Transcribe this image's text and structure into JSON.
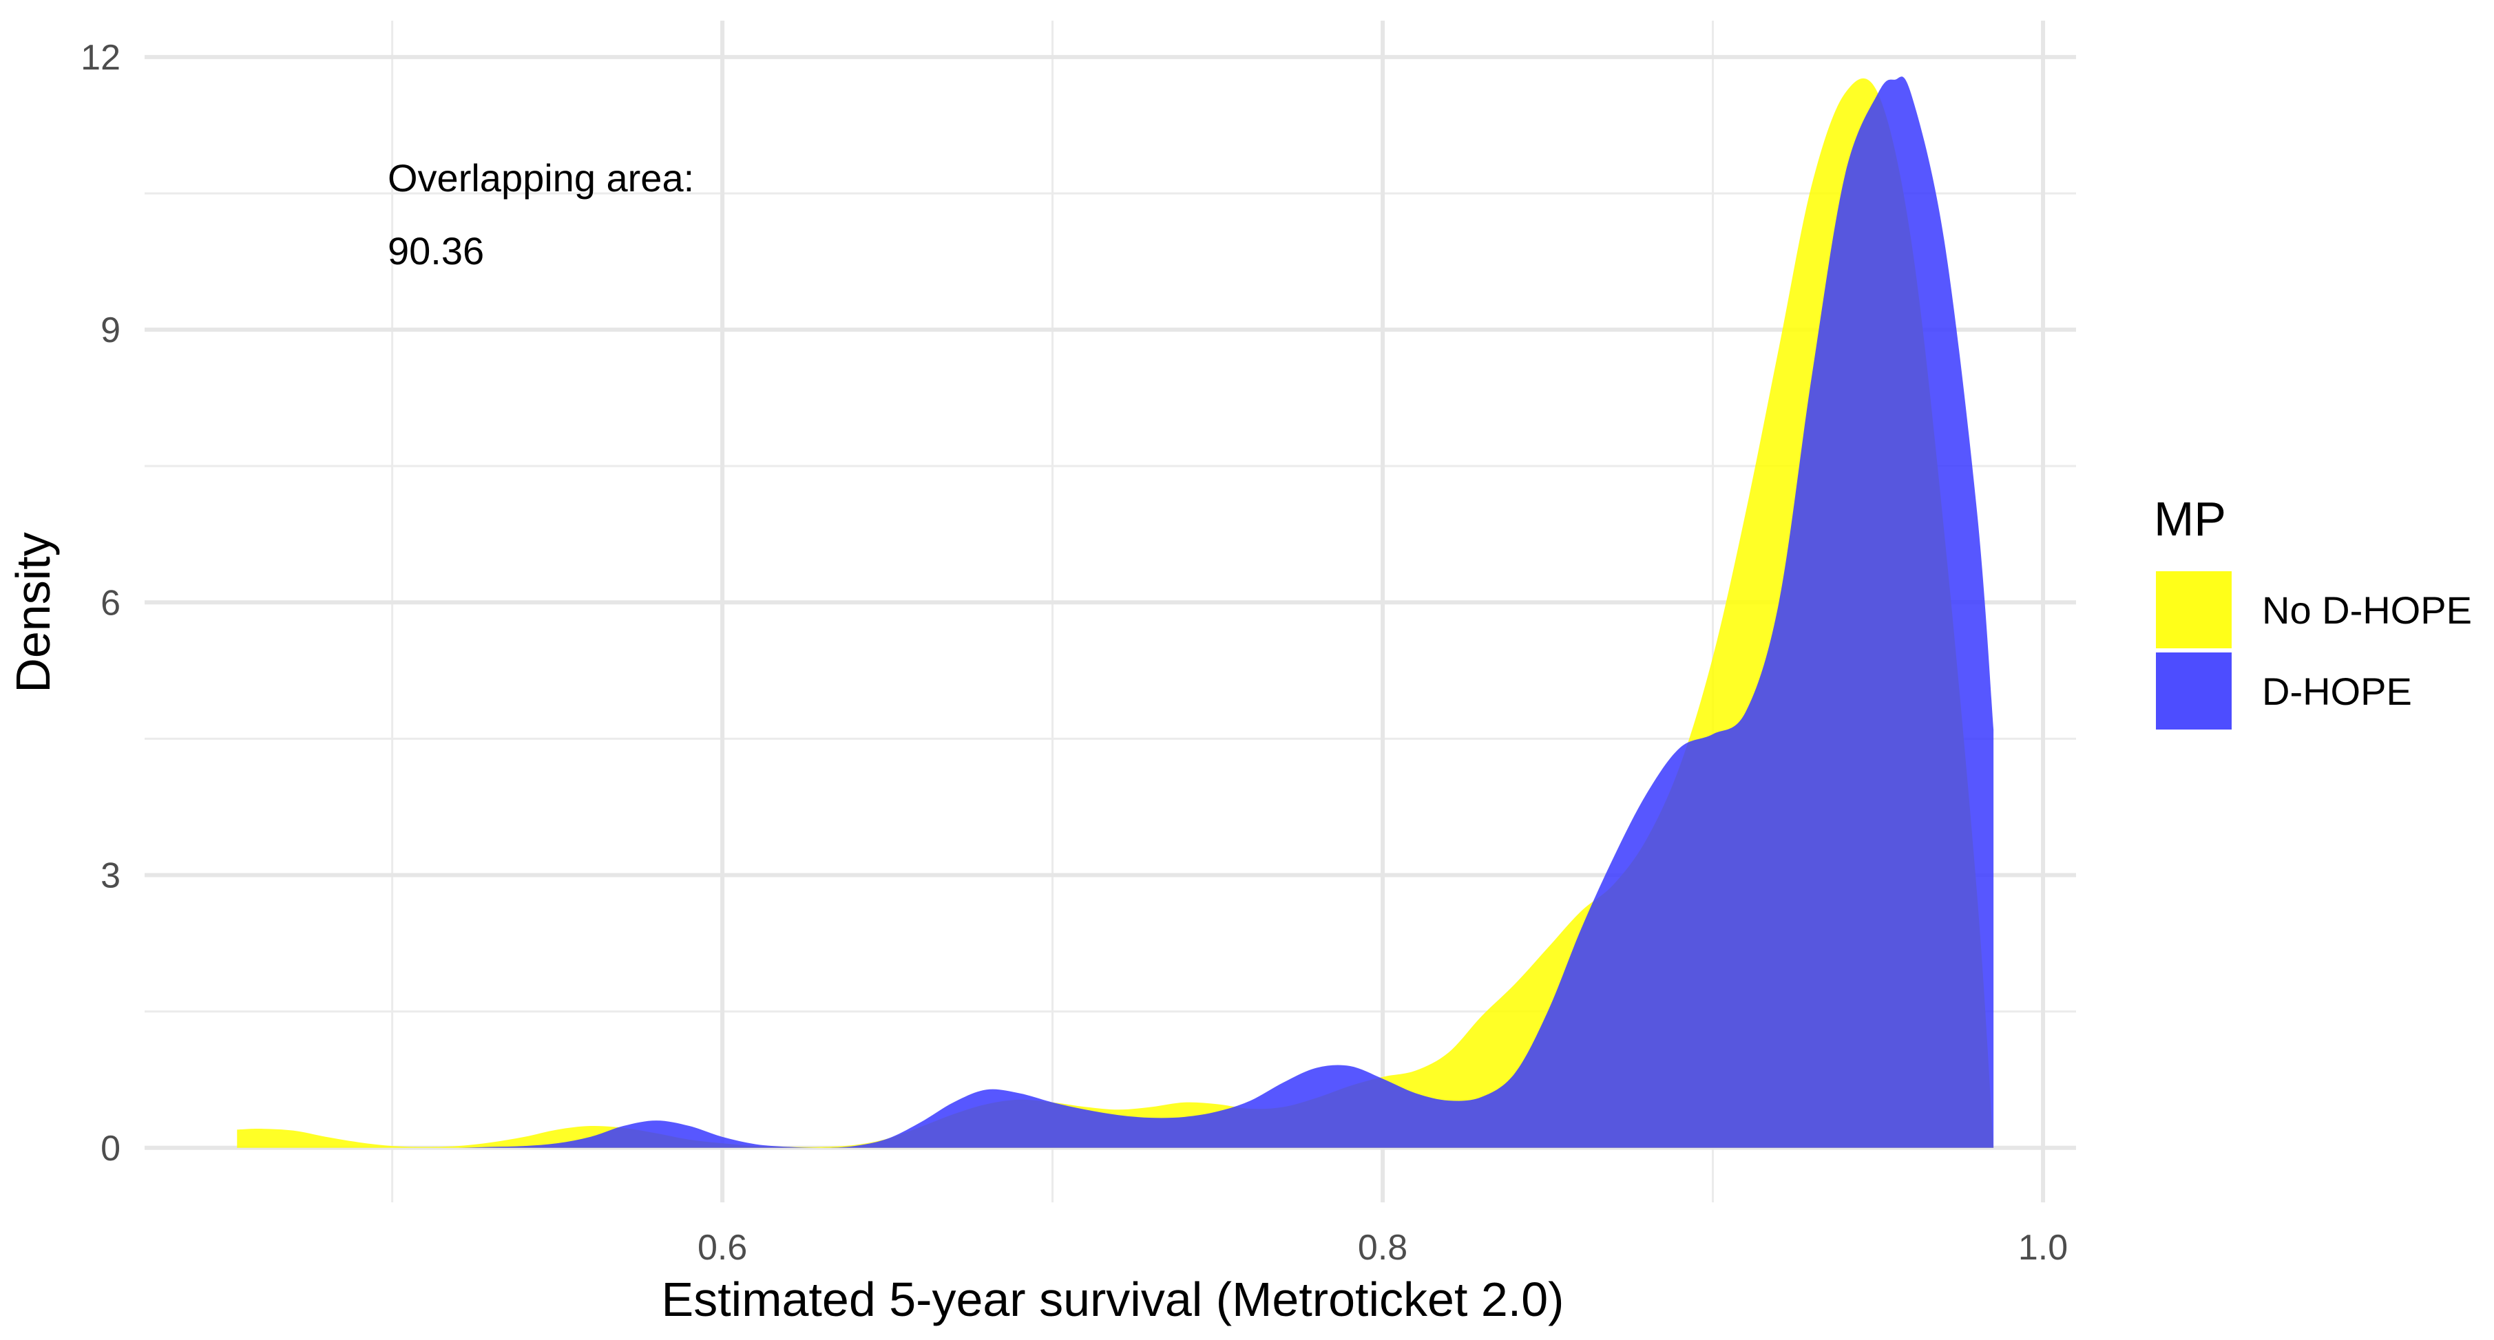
{
  "chart_data": {
    "type": "area",
    "subtype": "density",
    "title": "",
    "xlabel": "Estimated 5-year survival (Metroticket 2.0)",
    "ylabel": "Density",
    "xlim": [
      0.425,
      1.01
    ],
    "ylim": [
      -0.6,
      12.4
    ],
    "x_ticks": [
      0.6,
      0.8,
      1.0
    ],
    "x_tick_labels": [
      "0.6",
      "0.8",
      "1.0"
    ],
    "y_ticks": [
      0,
      3,
      6,
      9,
      12
    ],
    "y_tick_labels": [
      "0",
      "3",
      "6",
      "9",
      "12"
    ],
    "grid": true,
    "legend_position": "right",
    "legend_title": "MP",
    "annotation": {
      "line1": "Overlapping area:",
      "line2": "90.36"
    },
    "series": [
      {
        "name": "No D-HOPE",
        "color": "#ffff00",
        "x": [
          0.453,
          0.46,
          0.47,
          0.48,
          0.49,
          0.5,
          0.51,
          0.52,
          0.53,
          0.54,
          0.55,
          0.56,
          0.57,
          0.58,
          0.59,
          0.6,
          0.61,
          0.62,
          0.63,
          0.64,
          0.65,
          0.66,
          0.67,
          0.68,
          0.69,
          0.7,
          0.71,
          0.72,
          0.73,
          0.74,
          0.75,
          0.76,
          0.77,
          0.78,
          0.79,
          0.8,
          0.81,
          0.82,
          0.83,
          0.84,
          0.85,
          0.86,
          0.87,
          0.88,
          0.89,
          0.9,
          0.91,
          0.92,
          0.93,
          0.94,
          0.95,
          0.96,
          0.97,
          0.98,
          0.985
        ],
        "y": [
          0.2,
          0.21,
          0.19,
          0.12,
          0.06,
          0.02,
          0.01,
          0.02,
          0.06,
          0.12,
          0.2,
          0.24,
          0.22,
          0.16,
          0.09,
          0.05,
          0.02,
          0.01,
          0.01,
          0.03,
          0.1,
          0.23,
          0.37,
          0.48,
          0.53,
          0.5,
          0.45,
          0.42,
          0.45,
          0.5,
          0.48,
          0.43,
          0.45,
          0.55,
          0.68,
          0.78,
          0.85,
          1.05,
          1.45,
          1.8,
          2.2,
          2.6,
          2.9,
          3.4,
          4.2,
          5.4,
          7.0,
          8.8,
          10.6,
          11.6,
          11.6,
          10.0,
          6.8,
          2.8,
          0.0
        ]
      },
      {
        "name": "D-HOPE",
        "color": "#3a3aff",
        "x": [
          0.5,
          0.51,
          0.52,
          0.53,
          0.54,
          0.55,
          0.56,
          0.57,
          0.58,
          0.59,
          0.6,
          0.61,
          0.62,
          0.63,
          0.64,
          0.65,
          0.66,
          0.67,
          0.68,
          0.69,
          0.7,
          0.71,
          0.72,
          0.73,
          0.74,
          0.75,
          0.76,
          0.77,
          0.78,
          0.79,
          0.8,
          0.81,
          0.82,
          0.83,
          0.84,
          0.85,
          0.86,
          0.87,
          0.88,
          0.89,
          0.9,
          0.91,
          0.92,
          0.93,
          0.94,
          0.95,
          0.955,
          0.96,
          0.97,
          0.98,
          0.985
        ],
        "y": [
          0.0,
          0.0,
          0.0,
          0.01,
          0.02,
          0.05,
          0.12,
          0.24,
          0.3,
          0.24,
          0.12,
          0.04,
          0.01,
          0.0,
          0.02,
          0.1,
          0.28,
          0.5,
          0.64,
          0.6,
          0.5,
          0.42,
          0.36,
          0.33,
          0.34,
          0.4,
          0.52,
          0.72,
          0.88,
          0.9,
          0.76,
          0.6,
          0.52,
          0.56,
          0.82,
          1.5,
          2.4,
          3.2,
          3.9,
          4.4,
          4.55,
          4.8,
          6.0,
          8.5,
          10.7,
          11.6,
          11.75,
          11.6,
          10.0,
          7.0,
          4.6
        ]
      }
    ]
  }
}
